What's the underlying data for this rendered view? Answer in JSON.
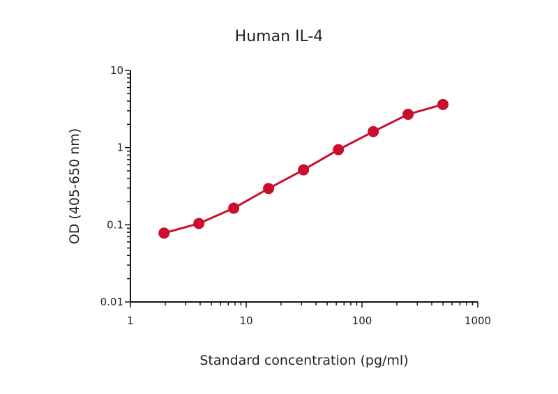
{
  "chart_data": {
    "type": "line",
    "title": "Human IL-4",
    "xlabel": "Standard concentration (pg/ml)",
    "ylabel": "OD (405-650 nm)",
    "xscale": "log",
    "yscale": "log",
    "xlim": [
      1,
      1000
    ],
    "ylim": [
      0.01,
      10
    ],
    "x_ticks": [
      "1",
      "10",
      "100",
      "1000"
    ],
    "y_ticks": [
      "0.01",
      "0.1",
      "1",
      "10"
    ],
    "grid": false,
    "series": [
      {
        "name": "Human IL-4",
        "color": "#c8102e",
        "x": [
          1.95,
          3.9,
          7.8,
          15.6,
          31.25,
          62.5,
          125,
          250,
          500
        ],
        "y": [
          0.078,
          0.104,
          0.164,
          0.295,
          0.515,
          0.94,
          1.61,
          2.7,
          3.62
        ]
      }
    ]
  }
}
